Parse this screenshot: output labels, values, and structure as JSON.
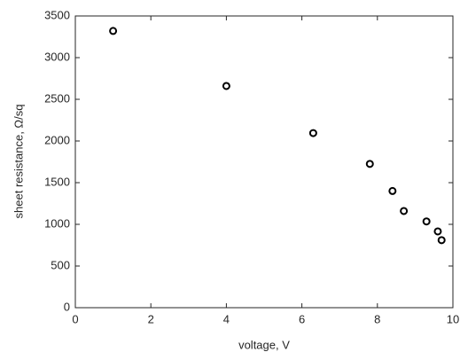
{
  "chart_data": {
    "type": "scatter",
    "x_label": "voltage, V",
    "y_label": "sheet resistance, Ω/sq",
    "x": [
      1,
      4,
      6.3,
      7.8,
      8.4,
      8.7,
      9.3,
      9.6,
      9.7
    ],
    "values": [
      3320,
      2660,
      2095,
      1725,
      1400,
      1160,
      1035,
      915,
      810
    ],
    "color": "#000000",
    "xlim": [
      0,
      10
    ],
    "xticks": [
      0,
      2,
      4,
      6,
      8,
      10
    ],
    "ylim": [
      0,
      3500
    ],
    "yticks": [
      0,
      500,
      1000,
      1500,
      2000,
      2500,
      3000,
      3500
    ],
    "grid": false
  }
}
